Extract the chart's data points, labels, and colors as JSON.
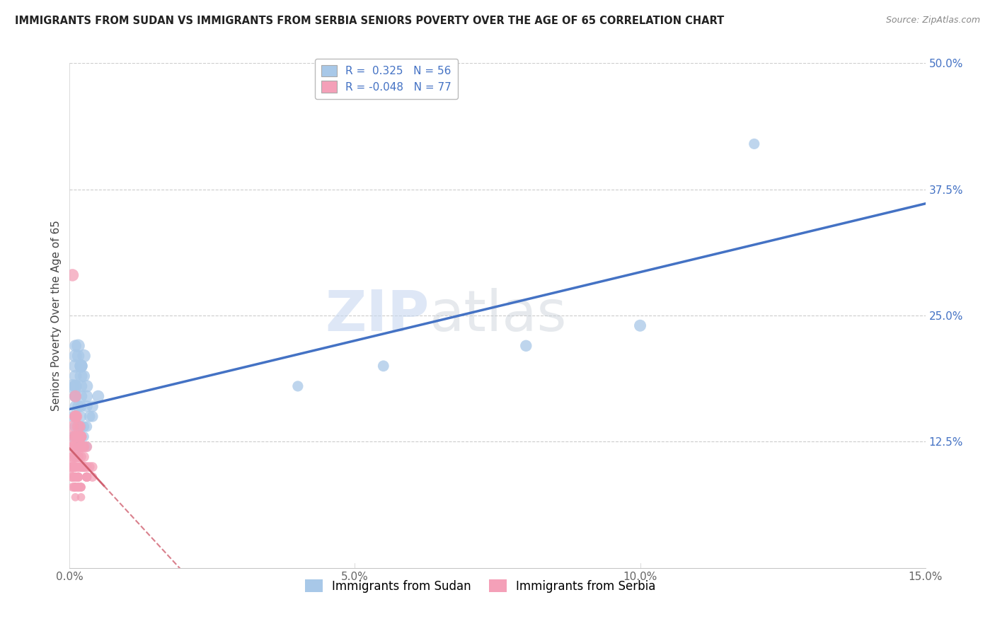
{
  "title": "IMMIGRANTS FROM SUDAN VS IMMIGRANTS FROM SERBIA SENIORS POVERTY OVER THE AGE OF 65 CORRELATION CHART",
  "source": "Source: ZipAtlas.com",
  "ylabel": "Seniors Poverty Over the Age of 65",
  "xlim": [
    0.0,
    0.15
  ],
  "ylim": [
    0.0,
    0.5
  ],
  "sudan_R": 0.325,
  "sudan_N": 56,
  "serbia_R": -0.048,
  "serbia_N": 77,
  "sudan_color": "#a8c8e8",
  "serbia_color": "#f4a0b8",
  "sudan_line_color": "#4472c4",
  "serbia_line_color": "#d06070",
  "watermark_zip": "ZIP",
  "watermark_atlas": "atlas",
  "sudan_x": [
    0.0005,
    0.001,
    0.001,
    0.0015,
    0.002,
    0.001,
    0.0005,
    0.002,
    0.001,
    0.0015,
    0.001,
    0.002,
    0.0025,
    0.001,
    0.0015,
    0.002,
    0.001,
    0.0005,
    0.0015,
    0.002,
    0.001,
    0.0015,
    0.002,
    0.001,
    0.0025,
    0.002,
    0.001,
    0.0015,
    0.001,
    0.002,
    0.0015,
    0.001,
    0.002,
    0.0025,
    0.001,
    0.002,
    0.003,
    0.0025,
    0.002,
    0.003,
    0.0035,
    0.003,
    0.0015,
    0.002,
    0.001,
    0.003,
    0.004,
    0.003,
    0.002,
    0.004,
    0.005,
    0.04,
    0.055,
    0.08,
    0.1,
    0.12
  ],
  "sudan_y": [
    0.18,
    0.2,
    0.22,
    0.21,
    0.19,
    0.15,
    0.13,
    0.16,
    0.14,
    0.12,
    0.18,
    0.17,
    0.19,
    0.11,
    0.13,
    0.2,
    0.16,
    0.15,
    0.14,
    0.18,
    0.17,
    0.12,
    0.14,
    0.19,
    0.21,
    0.13,
    0.11,
    0.16,
    0.15,
    0.2,
    0.14,
    0.18,
    0.12,
    0.13,
    0.17,
    0.15,
    0.16,
    0.14,
    0.13,
    0.17,
    0.15,
    0.12,
    0.22,
    0.2,
    0.21,
    0.14,
    0.16,
    0.18,
    0.13,
    0.15,
    0.17,
    0.18,
    0.2,
    0.22,
    0.24,
    0.42
  ],
  "sudan_y_sizes": [
    200,
    180,
    150,
    160,
    170,
    120,
    110,
    130,
    140,
    100,
    180,
    160,
    150,
    90,
    110,
    170,
    140,
    130,
    120,
    160,
    150,
    100,
    120,
    160,
    180,
    110,
    90,
    140,
    130,
    170,
    120,
    160,
    100,
    110,
    150,
    130,
    140,
    120,
    110,
    150,
    130,
    100,
    180,
    170,
    175,
    120,
    140,
    160,
    110,
    130,
    150,
    120,
    130,
    140,
    150,
    120
  ],
  "serbia_x": [
    0.0003,
    0.0005,
    0.001,
    0.0008,
    0.0015,
    0.001,
    0.0005,
    0.0012,
    0.0008,
    0.001,
    0.0015,
    0.002,
    0.0005,
    0.001,
    0.0012,
    0.0018,
    0.002,
    0.0025,
    0.0005,
    0.001,
    0.0012,
    0.0015,
    0.001,
    0.0008,
    0.0015,
    0.001,
    0.002,
    0.0025,
    0.0015,
    0.001,
    0.0005,
    0.002,
    0.0025,
    0.003,
    0.0015,
    0.001,
    0.0005,
    0.002,
    0.0025,
    0.001,
    0.0005,
    0.0015,
    0.002,
    0.001,
    0.0005,
    0.0015,
    0.001,
    0.002,
    0.0025,
    0.0005,
    0.001,
    0.0015,
    0.002,
    0.0025,
    0.003,
    0.001,
    0.0005,
    0.0015,
    0.002,
    0.001,
    0.0005,
    0.002,
    0.003,
    0.0035,
    0.004,
    0.0015,
    0.001,
    0.002,
    0.002,
    0.0005,
    0.0015,
    0.003,
    0.001,
    0.004,
    0.003,
    0.003,
    0.002
  ],
  "serbia_y": [
    0.1,
    0.13,
    0.15,
    0.12,
    0.14,
    0.11,
    0.09,
    0.12,
    0.08,
    0.13,
    0.11,
    0.12,
    0.29,
    0.17,
    0.15,
    0.14,
    0.13,
    0.12,
    0.11,
    0.1,
    0.09,
    0.08,
    0.1,
    0.09,
    0.13,
    0.11,
    0.12,
    0.1,
    0.09,
    0.08,
    0.1,
    0.13,
    0.11,
    0.12,
    0.1,
    0.09,
    0.12,
    0.11,
    0.1,
    0.15,
    0.14,
    0.13,
    0.12,
    0.11,
    0.1,
    0.09,
    0.08,
    0.13,
    0.12,
    0.11,
    0.1,
    0.09,
    0.08,
    0.1,
    0.09,
    0.13,
    0.12,
    0.11,
    0.1,
    0.09,
    0.08,
    0.07,
    0.09,
    0.1,
    0.09,
    0.08,
    0.07,
    0.08,
    0.1,
    0.09,
    0.11,
    0.09,
    0.08,
    0.1,
    0.09,
    0.1,
    0.08
  ],
  "serbia_y_sizes": [
    150,
    130,
    140,
    120,
    160,
    110,
    100,
    130,
    90,
    140,
    110,
    120,
    160,
    150,
    140,
    130,
    120,
    110,
    100,
    90,
    80,
    90,
    100,
    80,
    130,
    110,
    120,
    100,
    90,
    80,
    100,
    130,
    110,
    120,
    100,
    90,
    120,
    110,
    100,
    150,
    140,
    130,
    120,
    110,
    100,
    90,
    80,
    130,
    120,
    110,
    100,
    90,
    80,
    100,
    90,
    130,
    120,
    110,
    100,
    90,
    80,
    70,
    90,
    100,
    90,
    80,
    70,
    80,
    100,
    90,
    110,
    90,
    80,
    100,
    90,
    100,
    80
  ]
}
